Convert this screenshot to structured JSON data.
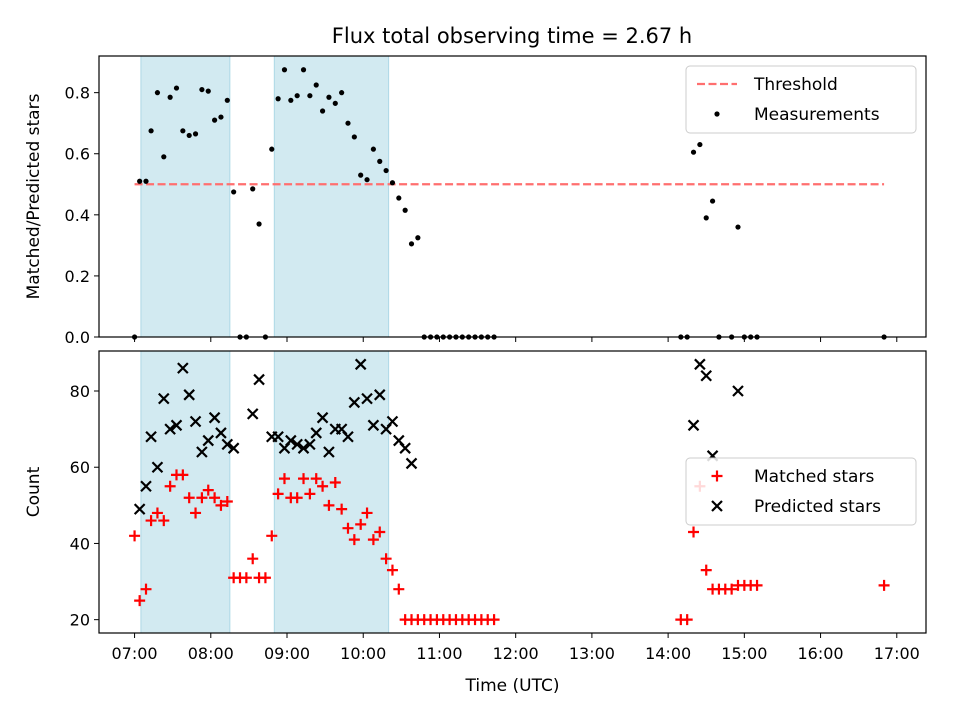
{
  "title": "Flux total observing time = 2.67 h",
  "chart_data": [
    {
      "type": "scatter",
      "panel": "top",
      "title": "Flux total observing time = 2.67 h",
      "ylabel": "Matched/Predicted stars",
      "xlabel": "",
      "xlim": [
        "06:32",
        "17:23"
      ],
      "ylim": [
        0,
        0.92
      ],
      "yticks": [
        0.0,
        0.2,
        0.4,
        0.6,
        0.8
      ],
      "ytick_labels": [
        "0.0",
        "0.2",
        "0.4",
        "0.6",
        "0.8"
      ],
      "legend": {
        "position": "upper right",
        "entries": [
          "Threshold",
          "Measurements"
        ]
      },
      "colors": {
        "threshold": "#ff6f6f",
        "measurements": "#000000",
        "shade": "#add8e6"
      },
      "shaded_intervals": [
        [
          "07:05",
          "08:15"
        ],
        [
          "08:50",
          "10:20"
        ]
      ],
      "threshold": {
        "name": "Threshold",
        "value": 0.5,
        "x_range": [
          "07:00",
          "16:50"
        ],
        "style": "dashed"
      },
      "series": [
        {
          "name": "Measurements",
          "points": [
            [
              "07:00",
              0.0
            ],
            [
              "07:04",
              0.51
            ],
            [
              "07:09",
              0.51
            ],
            [
              "07:13",
              0.675
            ],
            [
              "07:18",
              0.8
            ],
            [
              "07:23",
              0.59
            ],
            [
              "07:28",
              0.785
            ],
            [
              "07:33",
              0.815
            ],
            [
              "07:38",
              0.675
            ],
            [
              "07:43",
              0.66
            ],
            [
              "07:48",
              0.665
            ],
            [
              "07:53",
              0.81
            ],
            [
              "07:58",
              0.805
            ],
            [
              "08:03",
              0.71
            ],
            [
              "08:08",
              0.72
            ],
            [
              "08:13",
              0.775
            ],
            [
              "08:18",
              0.475
            ],
            [
              "08:23",
              0.0
            ],
            [
              "08:28",
              0.0
            ],
            [
              "08:33",
              0.485
            ],
            [
              "08:38",
              0.37
            ],
            [
              "08:43",
              0.0
            ],
            [
              "08:48",
              0.615
            ],
            [
              "08:53",
              0.78
            ],
            [
              "08:58",
              0.875
            ],
            [
              "09:03",
              0.775
            ],
            [
              "09:08",
              0.79
            ],
            [
              "09:13",
              0.875
            ],
            [
              "09:18",
              0.79
            ],
            [
              "09:23",
              0.825
            ],
            [
              "09:28",
              0.74
            ],
            [
              "09:33",
              0.785
            ],
            [
              "09:38",
              0.765
            ],
            [
              "09:43",
              0.8
            ],
            [
              "09:48",
              0.7
            ],
            [
              "09:53",
              0.655
            ],
            [
              "09:58",
              0.53
            ],
            [
              "10:03",
              0.515
            ],
            [
              "10:08",
              0.615
            ],
            [
              "10:13",
              0.575
            ],
            [
              "10:18",
              0.545
            ],
            [
              "10:23",
              0.505
            ],
            [
              "10:28",
              0.455
            ],
            [
              "10:33",
              0.415
            ],
            [
              "10:38",
              0.305
            ],
            [
              "10:43",
              0.325
            ],
            [
              "10:48",
              0.0
            ],
            [
              "10:53",
              0.0
            ],
            [
              "10:58",
              0.0
            ],
            [
              "11:03",
              0.0
            ],
            [
              "11:08",
              0.0
            ],
            [
              "11:13",
              0.0
            ],
            [
              "11:18",
              0.0
            ],
            [
              "11:23",
              0.0
            ],
            [
              "11:28",
              0.0
            ],
            [
              "11:33",
              0.0
            ],
            [
              "11:38",
              0.0
            ],
            [
              "11:43",
              0.0
            ],
            [
              "14:10",
              0.0
            ],
            [
              "14:15",
              0.0
            ],
            [
              "14:20",
              0.605
            ],
            [
              "14:25",
              0.63
            ],
            [
              "14:30",
              0.39
            ],
            [
              "14:35",
              0.445
            ],
            [
              "14:40",
              0.0
            ],
            [
              "14:50",
              0.0
            ],
            [
              "14:55",
              0.36
            ],
            [
              "15:00",
              0.0
            ],
            [
              "15:05",
              0.0
            ],
            [
              "15:10",
              0.0
            ],
            [
              "16:50",
              0.0
            ]
          ]
        }
      ]
    },
    {
      "type": "scatter",
      "panel": "bottom",
      "ylabel": "Count",
      "xlabel": "Time (UTC)",
      "xlim": [
        "06:32",
        "17:23"
      ],
      "ylim": [
        16.5,
        90.5
      ],
      "yticks": [
        20,
        40,
        60,
        80
      ],
      "ytick_labels": [
        "20",
        "40",
        "60",
        "80"
      ],
      "xticks": [
        "07:00",
        "08:00",
        "09:00",
        "10:00",
        "11:00",
        "12:00",
        "13:00",
        "14:00",
        "15:00",
        "16:00",
        "17:00"
      ],
      "legend": {
        "position": "center right",
        "entries": [
          "Matched stars",
          "Predicted stars"
        ]
      },
      "colors": {
        "matched": "#ff0000",
        "predicted": "#000000",
        "shade": "#add8e6"
      },
      "shaded_intervals": [
        [
          "07:05",
          "08:15"
        ],
        [
          "08:50",
          "10:20"
        ]
      ],
      "series": [
        {
          "name": "Matched stars",
          "marker": "plus",
          "points": [
            [
              "07:00",
              42
            ],
            [
              "07:04",
              25
            ],
            [
              "07:09",
              28
            ],
            [
              "07:13",
              46
            ],
            [
              "07:18",
              48
            ],
            [
              "07:23",
              46
            ],
            [
              "07:28",
              55
            ],
            [
              "07:33",
              58
            ],
            [
              "07:38",
              58
            ],
            [
              "07:43",
              52
            ],
            [
              "07:48",
              48
            ],
            [
              "07:53",
              52
            ],
            [
              "07:58",
              54
            ],
            [
              "08:03",
              52
            ],
            [
              "08:08",
              50
            ],
            [
              "08:13",
              51
            ],
            [
              "08:18",
              31
            ],
            [
              "08:23",
              31
            ],
            [
              "08:28",
              31
            ],
            [
              "08:33",
              36
            ],
            [
              "08:38",
              31
            ],
            [
              "08:43",
              31
            ],
            [
              "08:48",
              42
            ],
            [
              "08:53",
              53
            ],
            [
              "08:58",
              57
            ],
            [
              "09:03",
              52
            ],
            [
              "09:08",
              52
            ],
            [
              "09:13",
              57
            ],
            [
              "09:18",
              53
            ],
            [
              "09:23",
              57
            ],
            [
              "09:28",
              55
            ],
            [
              "09:33",
              50
            ],
            [
              "09:38",
              56
            ],
            [
              "09:43",
              49
            ],
            [
              "09:48",
              44
            ],
            [
              "09:53",
              41
            ],
            [
              "09:58",
              45
            ],
            [
              "10:03",
              48
            ],
            [
              "10:08",
              41
            ],
            [
              "10:13",
              43
            ],
            [
              "10:18",
              36
            ],
            [
              "10:23",
              33
            ],
            [
              "10:28",
              28
            ],
            [
              "10:33",
              20
            ],
            [
              "10:38",
              20
            ],
            [
              "10:43",
              20
            ],
            [
              "10:48",
              20
            ],
            [
              "10:53",
              20
            ],
            [
              "10:58",
              20
            ],
            [
              "11:03",
              20
            ],
            [
              "11:08",
              20
            ],
            [
              "11:13",
              20
            ],
            [
              "11:18",
              20
            ],
            [
              "11:23",
              20
            ],
            [
              "11:28",
              20
            ],
            [
              "11:33",
              20
            ],
            [
              "11:38",
              20
            ],
            [
              "11:43",
              20
            ],
            [
              "14:10",
              20
            ],
            [
              "14:15",
              20
            ],
            [
              "14:20",
              43
            ],
            [
              "14:25",
              55
            ],
            [
              "14:30",
              33
            ],
            [
              "14:35",
              28
            ],
            [
              "14:40",
              28
            ],
            [
              "14:45",
              28
            ],
            [
              "14:50",
              28
            ],
            [
              "14:55",
              29
            ],
            [
              "15:00",
              29
            ],
            [
              "15:05",
              29
            ],
            [
              "15:10",
              29
            ],
            [
              "16:50",
              29
            ]
          ]
        },
        {
          "name": "Predicted stars",
          "marker": "x",
          "points": [
            [
              "07:04",
              49
            ],
            [
              "07:09",
              55
            ],
            [
              "07:13",
              68
            ],
            [
              "07:18",
              60
            ],
            [
              "07:23",
              78
            ],
            [
              "07:28",
              70
            ],
            [
              "07:33",
              71
            ],
            [
              "07:38",
              86
            ],
            [
              "07:43",
              79
            ],
            [
              "07:48",
              72
            ],
            [
              "07:53",
              64
            ],
            [
              "07:58",
              67
            ],
            [
              "08:03",
              73
            ],
            [
              "08:08",
              69
            ],
            [
              "08:13",
              66
            ],
            [
              "08:18",
              65
            ],
            [
              "08:33",
              74
            ],
            [
              "08:38",
              83
            ],
            [
              "08:48",
              68
            ],
            [
              "08:53",
              68
            ],
            [
              "08:58",
              65
            ],
            [
              "09:03",
              67
            ],
            [
              "09:08",
              66
            ],
            [
              "09:13",
              65
            ],
            [
              "09:18",
              66
            ],
            [
              "09:23",
              69
            ],
            [
              "09:28",
              73
            ],
            [
              "09:33",
              64
            ],
            [
              "09:38",
              70
            ],
            [
              "09:43",
              70
            ],
            [
              "09:48",
              68
            ],
            [
              "09:53",
              77
            ],
            [
              "09:58",
              87
            ],
            [
              "10:03",
              78
            ],
            [
              "10:08",
              71
            ],
            [
              "10:13",
              79
            ],
            [
              "10:18",
              70
            ],
            [
              "10:23",
              72
            ],
            [
              "10:28",
              67
            ],
            [
              "10:33",
              65
            ],
            [
              "10:38",
              61
            ],
            [
              "14:20",
              71
            ],
            [
              "14:25",
              87
            ],
            [
              "14:30",
              84
            ],
            [
              "14:35",
              63
            ],
            [
              "14:55",
              80
            ]
          ]
        }
      ]
    }
  ]
}
